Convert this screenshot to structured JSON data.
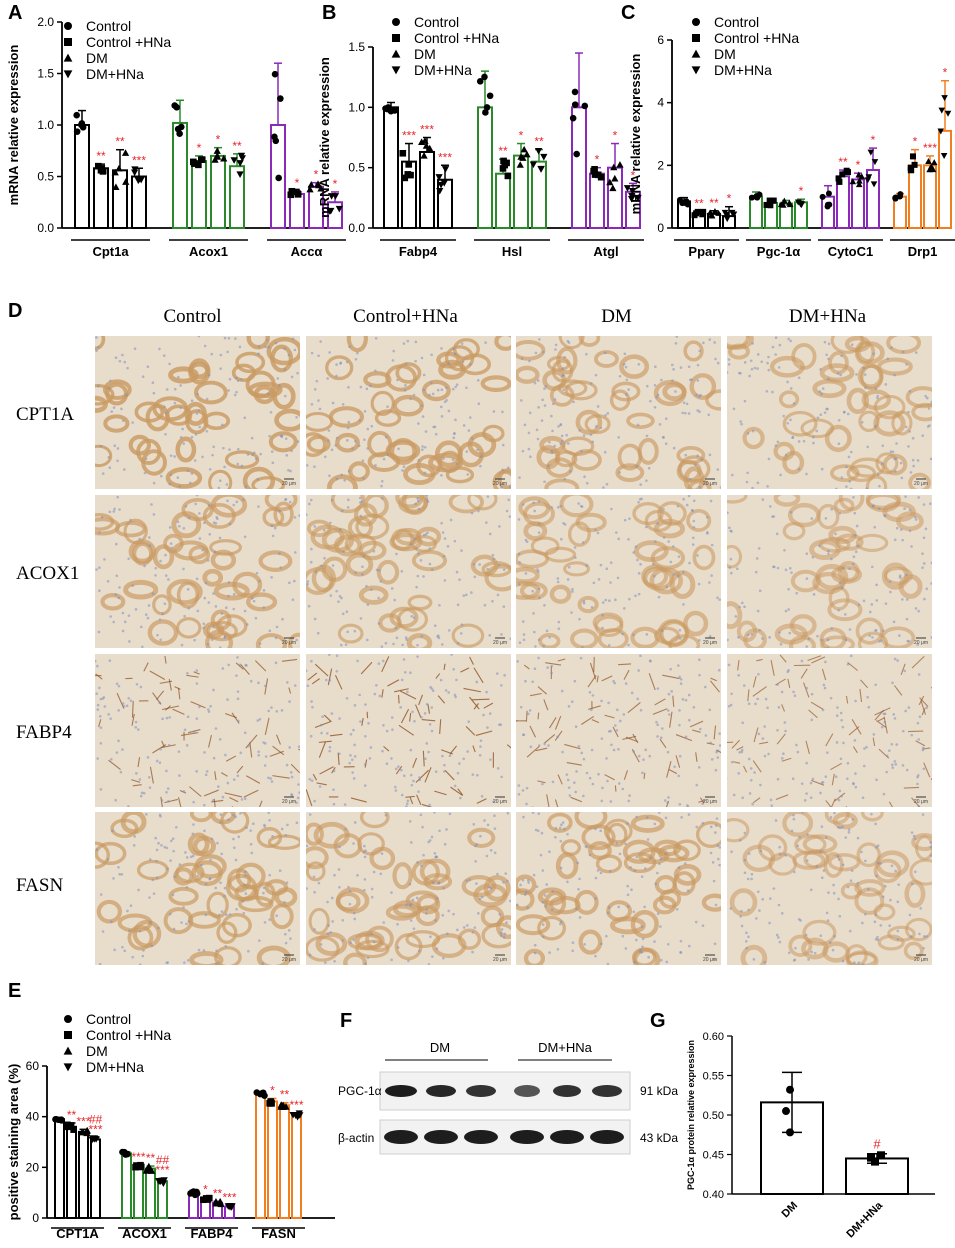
{
  "panels": {
    "a": "A",
    "b": "B",
    "c": "C",
    "d": "D",
    "e": "E",
    "f": "F",
    "g": "G"
  },
  "legend": {
    "control": "Control",
    "control_hna_spaced": "Control +HNa",
    "dm": "DM",
    "dm_hna": "DM+HNa"
  },
  "panel_d": {
    "columns": [
      "Control",
      "Control+HNa",
      "DM",
      "DM+HNa"
    ],
    "rows": [
      "CPT1A",
      "ACOX1",
      "FABP4",
      "FASN"
    ],
    "scale_label": "20 μm"
  },
  "panel_f": {
    "group_dm": "DM",
    "group_dm_hna": "DM+HNa",
    "band1": "PGC-1α",
    "band2": "β-actin",
    "kda1": "91 kDa",
    "kda2": "43 kDa"
  },
  "colors": {
    "black": "#000000",
    "green": "#2a8a2a",
    "purple": "#8b2ab8",
    "orange": "#f07f22",
    "sig": "#e8262a",
    "tissue_brown": "#c99a62",
    "tissue_bg": "#e8dccb",
    "nucleus": "#7d8fbf"
  },
  "chart_data": [
    {
      "id": "A",
      "type": "bar",
      "ylabel": "mRNA relative expression",
      "ylim": [
        0,
        2.0
      ],
      "yticks": [
        0.0,
        0.5,
        1.0,
        1.5,
        2.0
      ],
      "yticklabels": [
        "0.0",
        "0.5",
        "1.0",
        "1.5",
        "2.0"
      ],
      "genes": [
        {
          "name": "Cpt1a",
          "color": "black",
          "values": [
            1.0,
            0.58,
            0.56,
            0.5
          ],
          "sd": [
            0.14,
            0.04,
            0.2,
            0.08
          ],
          "sig": [
            "",
            "**",
            "**",
            "***"
          ]
        },
        {
          "name": "Acox1",
          "color": "green",
          "values": [
            1.02,
            0.65,
            0.7,
            0.6
          ],
          "sd": [
            0.22,
            0.05,
            0.08,
            0.12
          ],
          "sig": [
            "",
            "*",
            "*",
            "**"
          ]
        },
        {
          "name": "Accα",
          "color": "purple",
          "values": [
            1.0,
            0.33,
            0.4,
            0.25
          ],
          "sd": [
            0.6,
            0.03,
            0.04,
            0.1
          ],
          "sig": [
            "",
            "*",
            "*",
            "*"
          ]
        }
      ]
    },
    {
      "id": "B",
      "type": "bar",
      "ylabel": "mRNA relative expression",
      "ylim": [
        0,
        1.5
      ],
      "yticks": [
        0.0,
        0.5,
        1.0,
        1.5
      ],
      "yticklabels": [
        "0.0",
        "0.5",
        "1.0",
        "1.5"
      ],
      "genes": [
        {
          "name": "Fabp4",
          "color": "black",
          "values": [
            1.0,
            0.55,
            0.63,
            0.4
          ],
          "sd": [
            0.04,
            0.15,
            0.12,
            0.12
          ],
          "sig": [
            "",
            "***",
            "***",
            "***"
          ]
        },
        {
          "name": "Hsl",
          "color": "green",
          "values": [
            1.0,
            0.45,
            0.6,
            0.55
          ],
          "sd": [
            0.3,
            0.12,
            0.1,
            0.1
          ],
          "sig": [
            "",
            "**",
            "*",
            "**"
          ]
        },
        {
          "name": "Atgl",
          "color": "purple",
          "values": [
            1.0,
            0.45,
            0.5,
            0.3
          ],
          "sd": [
            0.45,
            0.05,
            0.2,
            0.07
          ],
          "sig": [
            "",
            "*",
            "*",
            "*"
          ]
        }
      ]
    },
    {
      "id": "C",
      "type": "bar",
      "ylabel": "mRNA relative expression",
      "ylim": [
        0,
        6
      ],
      "yticks": [
        0,
        2,
        4,
        6
      ],
      "yticklabels": [
        "0",
        "2",
        "4",
        "6"
      ],
      "genes": [
        {
          "name": "Pparγ",
          "color": "black",
          "values": [
            0.85,
            0.45,
            0.45,
            0.38
          ],
          "sd": [
            0.12,
            0.08,
            0.1,
            0.3
          ],
          "sig": [
            "",
            "**",
            "**",
            "*"
          ]
        },
        {
          "name": "Pgc-1α",
          "color": "green",
          "values": [
            1.0,
            0.8,
            0.78,
            0.82
          ],
          "sd": [
            0.15,
            0.1,
            0.1,
            0.1
          ],
          "sig": [
            "",
            "",
            "",
            "*"
          ]
        },
        {
          "name": "CytoC1",
          "color": "purple",
          "values": [
            1.0,
            1.65,
            1.55,
            1.85
          ],
          "sd": [
            0.35,
            0.2,
            0.2,
            0.7
          ],
          "sig": [
            "",
            "**",
            "*",
            "*"
          ]
        },
        {
          "name": "Drp1",
          "color": "orange",
          "values": [
            1.0,
            2.0,
            2.0,
            3.1
          ],
          "sd": [
            0.1,
            0.5,
            0.3,
            1.6
          ],
          "sig": [
            "",
            "*",
            "***",
            "*"
          ]
        }
      ]
    },
    {
      "id": "E",
      "type": "bar",
      "ylabel": "positive staining area (%)",
      "ylim": [
        0,
        60
      ],
      "yticks": [
        0,
        20,
        40,
        60
      ],
      "yticklabels": [
        "0",
        "20",
        "40",
        "60"
      ],
      "genes": [
        {
          "name": "CPT1A",
          "color": "black",
          "values": [
            39,
            36,
            34,
            31
          ],
          "sd": [
            0.6,
            1.5,
            1.0,
            0.8
          ],
          "sig": [
            "",
            "**",
            "***",
            "##\n***"
          ]
        },
        {
          "name": "ACOX1",
          "color": "green",
          "values": [
            25.5,
            20.5,
            19.5,
            14.5
          ],
          "sd": [
            0.6,
            0.5,
            1.0,
            1.2
          ],
          "sig": [
            "",
            "***",
            "**",
            "##\n***"
          ]
        },
        {
          "name": "FABP4",
          "color": "purple",
          "values": [
            10,
            7.5,
            6,
            4.5
          ],
          "sd": [
            1.0,
            0.5,
            0.6,
            0.4
          ],
          "sig": [
            "",
            "*",
            "**",
            "***"
          ]
        },
        {
          "name": "FASN",
          "color": "orange",
          "values": [
            49,
            46,
            44.5,
            40.5
          ],
          "sd": [
            1.0,
            1.2,
            1.0,
            1.0
          ],
          "sig": [
            "",
            "*",
            "**",
            "***"
          ]
        }
      ]
    },
    {
      "id": "G",
      "type": "bar",
      "ylabel": "PGC-1α protein relative expression",
      "ylim": [
        0.4,
        0.6
      ],
      "yticks": [
        0.4,
        0.45,
        0.5,
        0.55,
        0.6
      ],
      "yticklabels": [
        "0.40",
        "0.45",
        "0.50",
        "0.55",
        "0.60"
      ],
      "categories": [
        "DM",
        "DM+HNa"
      ],
      "values": [
        0.516,
        0.445
      ],
      "sd": [
        0.038,
        0.006
      ],
      "sig": [
        "",
        "#"
      ]
    }
  ]
}
